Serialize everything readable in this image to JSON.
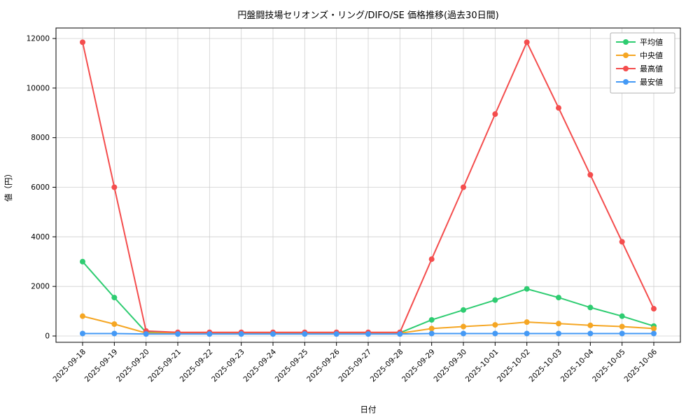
{
  "chart_data": {
    "type": "line",
    "title": "円盤闘技場セリオンズ・リング/DIFO/SE 価格推移(過去30日間)",
    "xlabel": "日付",
    "ylabel": "値（円）",
    "ylim": [
      0,
      12000
    ],
    "yticks": [
      0,
      2000,
      4000,
      6000,
      8000,
      10000,
      12000
    ],
    "grid": true,
    "legend_position": "upper right",
    "grid_color": "#cfcfcf",
    "background_color": "#ffffff",
    "categories": [
      "2025-09-18",
      "2025-09-19",
      "2025-09-20",
      "2025-09-21",
      "2025-09-22",
      "2025-09-23",
      "2025-09-24",
      "2025-09-25",
      "2025-09-26",
      "2025-09-27",
      "2025-09-28",
      "2025-09-29",
      "2025-09-30",
      "2025-10-01",
      "2025-10-02",
      "2025-10-03",
      "2025-10-04",
      "2025-10-05",
      "2025-10-06"
    ],
    "series": [
      {
        "name": "平均値",
        "color": "#2ecc71",
        "values": [
          3000,
          1550,
          150,
          120,
          120,
          120,
          120,
          120,
          120,
          120,
          130,
          650,
          1050,
          1450,
          1900,
          1550,
          1150,
          800,
          400
        ]
      },
      {
        "name": "中央値",
        "color": "#f5a623",
        "values": [
          800,
          480,
          120,
          110,
          110,
          110,
          110,
          110,
          110,
          110,
          110,
          300,
          380,
          450,
          560,
          500,
          430,
          380,
          300
        ]
      },
      {
        "name": "最高値",
        "color": "#f44d4d",
        "values": [
          11850,
          6000,
          200,
          150,
          150,
          150,
          150,
          150,
          150,
          150,
          150,
          3100,
          6000,
          8950,
          11850,
          9200,
          6500,
          3800,
          1100
        ]
      },
      {
        "name": "最安値",
        "color": "#4499f5",
        "values": [
          100,
          100,
          80,
          80,
          80,
          80,
          80,
          80,
          80,
          80,
          80,
          100,
          100,
          100,
          100,
          100,
          100,
          100,
          100
        ]
      }
    ]
  }
}
